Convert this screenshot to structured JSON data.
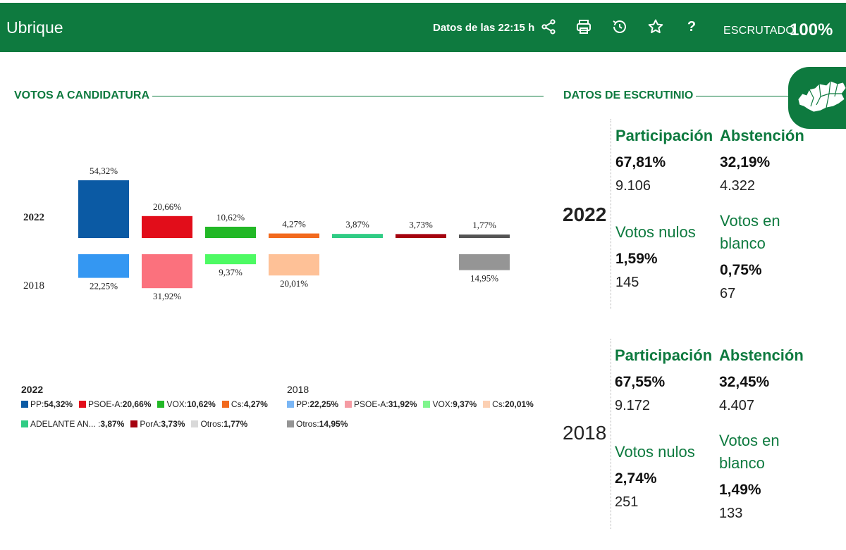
{
  "header": {
    "title": "Ubrique",
    "timestamp": "Datos de las 22:15 h",
    "icons": [
      "share-icon",
      "print-icon",
      "history-icon",
      "star-icon",
      "help-icon"
    ],
    "help_glyph": "?",
    "scrutiny_label": "ESCRUTADO",
    "scrutiny_value": "100%",
    "color": "#0e7a3f"
  },
  "sections": {
    "votes_title": "VOTOS A CANDIDATURA",
    "scrutiny_title": "DATOS DE ESCRUTINIO"
  },
  "chart_data": {
    "type": "bar",
    "title": "VOTOS A CANDIDATURA",
    "years": [
      "2022",
      "2018"
    ],
    "series": [
      {
        "name": "2022",
        "parties": [
          "PP",
          "PSOE-A",
          "VOX",
          "Cs",
          "ADELANTE AN...",
          "PorA",
          "Otros"
        ],
        "values": [
          54.32,
          20.66,
          10.62,
          4.27,
          3.87,
          3.73,
          1.77
        ],
        "labels": [
          "54,32%",
          "20,66%",
          "10,62%",
          "4,27%",
          "3,87%",
          "3,73%",
          "1,77%"
        ],
        "colors": [
          "#0b5aa4",
          "#e20d1a",
          "#22b826",
          "#f26a1e",
          "#2fcc84",
          "#a5020f",
          "#555555"
        ]
      },
      {
        "name": "2018",
        "parties": [
          "PP",
          "PSOE-A",
          "VOX",
          "Cs",
          "",
          "",
          "Otros"
        ],
        "values": [
          22.25,
          31.92,
          9.37,
          20.01,
          null,
          null,
          14.95
        ],
        "labels": [
          "22,25%",
          "31,92%",
          "9,37%",
          "20,01%",
          "",
          "",
          "14,95%"
        ],
        "colors": [
          "#3497f2",
          "#fb717d",
          "#4dfa63",
          "#fec197",
          "",
          "",
          "#959595"
        ]
      }
    ]
  },
  "legend": {
    "y2022": {
      "year": "2022",
      "items": [
        {
          "name": "PP:",
          "value": "54,32%",
          "color": "#0b5aa4"
        },
        {
          "name": "PSOE-A:",
          "value": "20,66%",
          "color": "#e20d1a"
        },
        {
          "name": "VOX:",
          "value": "10,62%",
          "color": "#22b826"
        },
        {
          "name": "Cs:",
          "value": "4,27%",
          "color": "#f26a1e"
        },
        {
          "name": "ADELANTE AN... :",
          "value": "3,87%",
          "color": "#2fcc84"
        },
        {
          "name": "PorA:",
          "value": "3,73%",
          "color": "#a5020f"
        },
        {
          "name": "Otros:",
          "value": "1,77%",
          "color": "#d9d9d9"
        }
      ]
    },
    "y2018": {
      "year": "2018",
      "items": [
        {
          "name": "PP:",
          "value": "22,25%",
          "color": "#7ab6f5"
        },
        {
          "name": "PSOE-A:",
          "value": "31,92%",
          "color": "#f59ba3"
        },
        {
          "name": "VOX:",
          "value": "9,37%",
          "color": "#7ff58d"
        },
        {
          "name": "Cs:",
          "value": "20,01%",
          "color": "#fcd0b3"
        },
        {
          "name": "Otros:",
          "value": "14,95%",
          "color": "#959595"
        }
      ]
    }
  },
  "stats": {
    "y2022": {
      "year": "2022",
      "participacion": {
        "label": "Participación",
        "pct": "67,81%",
        "count": "9.106"
      },
      "abstencion": {
        "label": "Abstención",
        "pct": "32,19%",
        "count": "4.322"
      },
      "nulos": {
        "label": "Votos nulos",
        "pct": "1,59%",
        "count": "145"
      },
      "blanco": {
        "label": "Votos en blanco",
        "pct": "0,75%",
        "count": "67"
      }
    },
    "y2018": {
      "year": "2018",
      "participacion": {
        "label": "Participación",
        "pct": "67,55%",
        "count": "9.172"
      },
      "abstencion": {
        "label": "Abstención",
        "pct": "32,45%",
        "count": "4.407"
      },
      "nulos": {
        "label": "Votos nulos",
        "pct": "2,74%",
        "count": "251"
      },
      "blanco": {
        "label": "Votos en blanco",
        "pct": "1,49%",
        "count": "133"
      }
    }
  },
  "map_badge_icon": "andalucia-map-icon"
}
